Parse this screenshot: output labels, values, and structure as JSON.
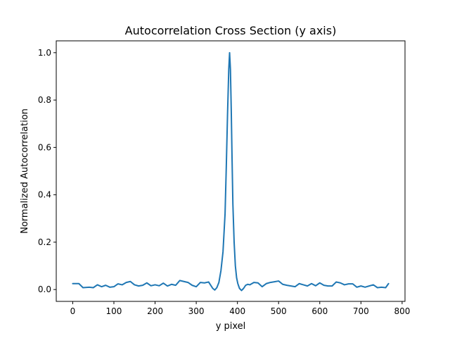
{
  "chart_data": {
    "type": "line",
    "title": "Autocorrelation Cross Section (y axis)",
    "xlabel": "y pixel",
    "ylabel": "Normalized Autocorrelation",
    "xlim": [
      -40,
      807
    ],
    "ylim": [
      -0.05,
      1.05
    ],
    "xticks": [
      0,
      100,
      200,
      300,
      400,
      500,
      600,
      700,
      800
    ],
    "yticks": [
      0.0,
      0.2,
      0.4,
      0.6,
      0.8,
      1.0
    ],
    "xtick_labels": [
      "0",
      "100",
      "200",
      "300",
      "400",
      "500",
      "600",
      "700",
      "800"
    ],
    "ytick_labels": [
      "0.0",
      "0.2",
      "0.4",
      "0.6",
      "0.8",
      "1.0"
    ],
    "grid": false,
    "legend": "none",
    "color": "#1f77b4",
    "series": [
      {
        "x": [
          0,
          15,
          25,
          40,
          50,
          60,
          70,
          80,
          90,
          100,
          110,
          120,
          130,
          140,
          150,
          160,
          170,
          180,
          190,
          200,
          210,
          220,
          230,
          240,
          250,
          260,
          270,
          280,
          290,
          300,
          310,
          320,
          330,
          340,
          345,
          350,
          355,
          360,
          365,
          370,
          373,
          376,
          379,
          381,
          383,
          385,
          387,
          389,
          392,
          395,
          398,
          401,
          405,
          410,
          415,
          420,
          425,
          430,
          440,
          450,
          460,
          470,
          480,
          490,
          500,
          510,
          520,
          530,
          540,
          550,
          560,
          570,
          580,
          590,
          600,
          610,
          620,
          630,
          640,
          650,
          660,
          670,
          680,
          690,
          700,
          710,
          720,
          730,
          740,
          750,
          760,
          767
        ],
        "y": [
          0.025,
          0.025,
          0.008,
          0.01,
          0.008,
          0.02,
          0.012,
          0.018,
          0.01,
          0.012,
          0.024,
          0.02,
          0.03,
          0.034,
          0.02,
          0.015,
          0.018,
          0.028,
          0.016,
          0.02,
          0.016,
          0.027,
          0.015,
          0.022,
          0.018,
          0.038,
          0.034,
          0.03,
          0.018,
          0.012,
          0.03,
          0.028,
          0.032,
          0.005,
          -0.002,
          0.008,
          0.03,
          0.08,
          0.16,
          0.32,
          0.52,
          0.74,
          0.93,
          1.0,
          0.93,
          0.76,
          0.55,
          0.36,
          0.2,
          0.1,
          0.05,
          0.025,
          0.005,
          -0.004,
          0.005,
          0.018,
          0.022,
          0.02,
          0.03,
          0.028,
          0.012,
          0.025,
          0.03,
          0.033,
          0.036,
          0.022,
          0.018,
          0.015,
          0.012,
          0.025,
          0.02,
          0.015,
          0.025,
          0.016,
          0.028,
          0.018,
          0.015,
          0.015,
          0.032,
          0.028,
          0.02,
          0.024,
          0.024,
          0.01,
          0.015,
          0.01,
          0.015,
          0.02,
          0.008,
          0.01,
          0.008,
          0.025
        ]
      }
    ]
  }
}
